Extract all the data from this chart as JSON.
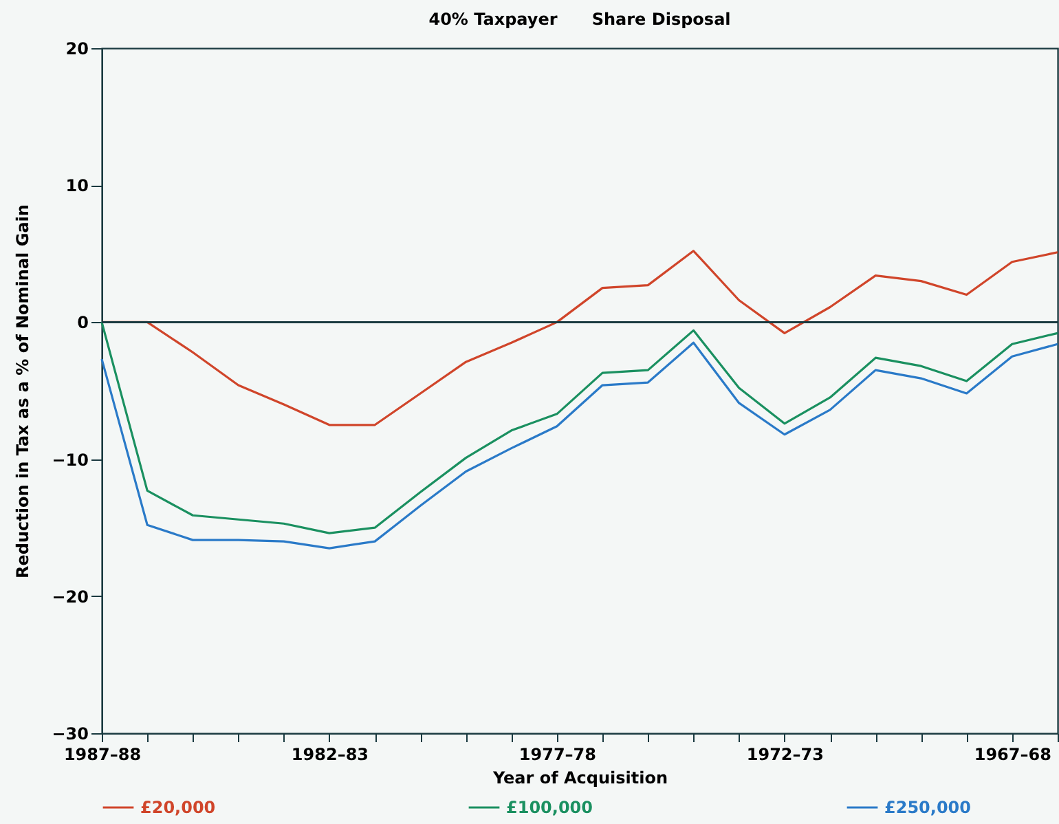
{
  "chart_data": {
    "type": "line",
    "title": "40% Taxpayer      Share Disposal",
    "xlabel": "Year of Acquisition",
    "ylabel": "Reduction in Tax as a % of Nominal Gain",
    "categories": [
      "1987–88",
      null,
      null,
      null,
      null,
      "1982–83",
      null,
      null,
      null,
      null,
      "1977–78",
      null,
      null,
      null,
      null,
      "1972–73",
      null,
      null,
      null,
      null,
      "1967–68",
      null
    ],
    "series": [
      {
        "name": "£20,000",
        "color": "#d0452a",
        "values": [
          0,
          0,
          -2.2,
          -4.6,
          -6.0,
          -7.5,
          -7.5,
          -5.2,
          -2.9,
          -1.5,
          0,
          2.5,
          2.7,
          5.2,
          1.6,
          -0.8,
          1.1,
          3.4,
          3.0,
          2.0,
          4.4,
          5.1
        ]
      },
      {
        "name": "£100,000",
        "color": "#1a9060",
        "values": [
          0,
          -12.3,
          -14.1,
          -14.4,
          -14.7,
          -15.4,
          -15.0,
          -12.4,
          -9.9,
          -7.9,
          -6.7,
          -3.7,
          -3.5,
          -0.6,
          -4.8,
          -7.4,
          -5.5,
          -2.6,
          -3.2,
          -4.3,
          -1.6,
          -0.8
        ]
      },
      {
        "name": "£250,000",
        "color": "#2a7ac8",
        "values": [
          -2.7,
          -14.8,
          -15.9,
          -15.9,
          -16.0,
          -16.5,
          -16.0,
          -13.4,
          -10.9,
          -9.2,
          -7.6,
          -4.6,
          -4.4,
          -1.5,
          -5.9,
          -8.2,
          -6.4,
          -3.5,
          -4.1,
          -5.2,
          -2.5,
          -1.6
        ]
      }
    ],
    "ylim": [
      -30,
      20
    ],
    "yticks": [
      -30,
      -20,
      -10,
      0,
      10,
      20
    ],
    "ref_lines": [
      {
        "axis": "y",
        "value": 0,
        "color": "#1a3a40"
      }
    ],
    "grid": false,
    "legend": "bottom",
    "marker": "none",
    "line_style": "solid"
  }
}
